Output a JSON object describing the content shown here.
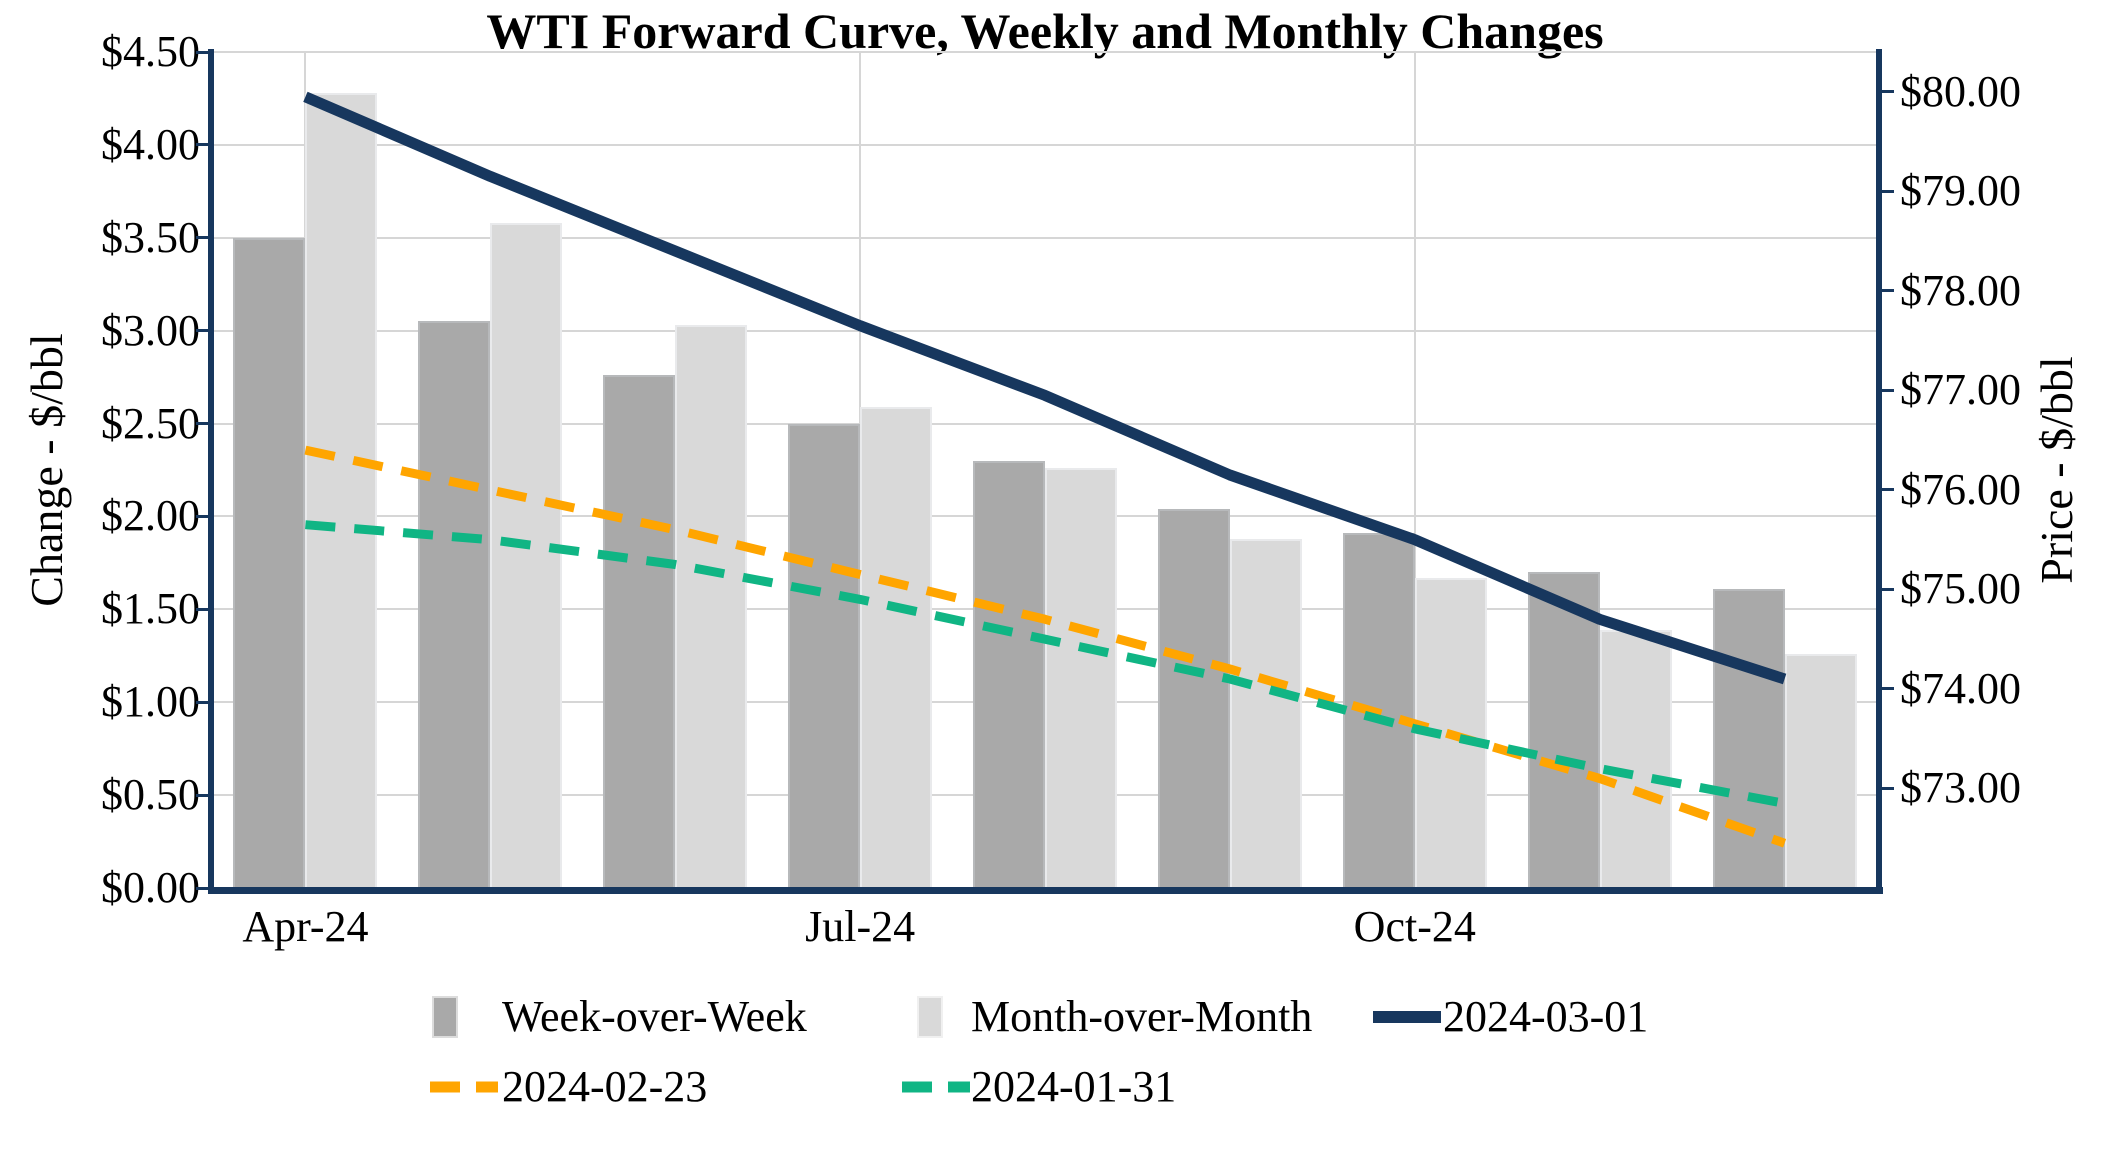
{
  "chart_data": {
    "type": "combo-bar-line",
    "title": "WTI Forward Curve, Weekly and Monthly Changes",
    "grid": true,
    "categories_count": 9,
    "x_ticks": [
      {
        "index": 0,
        "label": "Apr-24"
      },
      {
        "index": 3,
        "label": "Jul-24"
      },
      {
        "index": 6,
        "label": "Oct-24"
      }
    ],
    "left_axis": {
      "label": "Change - $/bbl",
      "min": 0.0,
      "max": 4.5,
      "ticks": [
        {
          "value": 0.0,
          "label": "$0.00"
        },
        {
          "value": 0.5,
          "label": "$0.50"
        },
        {
          "value": 1.0,
          "label": "$1.00"
        },
        {
          "value": 1.5,
          "label": "$1.50"
        },
        {
          "value": 2.0,
          "label": "$2.00"
        },
        {
          "value": 2.5,
          "label": "$2.50"
        },
        {
          "value": 3.0,
          "label": "$3.00"
        },
        {
          "value": 3.5,
          "label": "$3.50"
        },
        {
          "value": 4.0,
          "label": "$4.00"
        },
        {
          "value": 4.5,
          "label": "$4.50"
        }
      ]
    },
    "right_axis": {
      "label": "Price - $/bbl",
      "min": 72.0,
      "max": 80.4,
      "ticks": [
        {
          "value": 73.0,
          "label": "$73.00"
        },
        {
          "value": 74.0,
          "label": "$74.00"
        },
        {
          "value": 75.0,
          "label": "$75.00"
        },
        {
          "value": 76.0,
          "label": "$76.00"
        },
        {
          "value": 77.0,
          "label": "$77.00"
        },
        {
          "value": 78.0,
          "label": "$78.00"
        },
        {
          "value": 79.0,
          "label": "$79.00"
        },
        {
          "value": 80.0,
          "label": "$80.00"
        }
      ]
    },
    "bar_series": [
      {
        "name": "Week-over-Week",
        "axis": "left",
        "color": "#A9A9A9",
        "edge_color": "#B7B9BB",
        "values": [
          3.5,
          3.05,
          2.76,
          2.5,
          2.3,
          2.04,
          1.91,
          1.7,
          1.61
        ]
      },
      {
        "name": "Month-over-Month",
        "axis": "left",
        "color": "#D9D9D9",
        "edge_color": "#E9EAEC",
        "values": [
          4.28,
          3.58,
          3.03,
          2.59,
          2.26,
          1.88,
          1.67,
          1.39,
          1.26
        ]
      }
    ],
    "line_series": [
      {
        "name": "2024-03-01",
        "axis": "right",
        "color": "#17375E",
        "style": "solid",
        "values": [
          79.95,
          79.15,
          78.4,
          77.65,
          76.95,
          76.15,
          75.5,
          74.7,
          74.1
        ]
      },
      {
        "name": "2024-02-23",
        "axis": "right",
        "color": "#FFA500",
        "style": "dashed",
        "values": [
          76.4,
          76.0,
          75.6,
          75.15,
          74.7,
          74.2,
          73.65,
          73.1,
          72.45
        ]
      },
      {
        "name": "2024-01-31",
        "axis": "right",
        "color": "#10B584",
        "style": "dashed",
        "values": [
          75.65,
          75.5,
          75.25,
          74.9,
          74.5,
          74.1,
          73.6,
          73.2,
          72.85
        ]
      }
    ],
    "legend": {
      "rows": [
        [
          {
            "type": "bar",
            "color": "#A9A9A9",
            "label": "Week-over-Week"
          },
          {
            "type": "bar",
            "color": "#D9D9D9",
            "label": "Month-over-Month"
          },
          {
            "type": "line",
            "style": "solid",
            "color": "#17375E",
            "label": "2024-03-01"
          }
        ],
        [
          {
            "type": "line",
            "style": "dashed",
            "color": "#FFA500",
            "label": "2024-02-23"
          },
          {
            "type": "line",
            "style": "dashed",
            "color": "#10B584",
            "label": "2024-01-31"
          }
        ]
      ]
    },
    "colors": {
      "spine": "#17375E",
      "gridline": "#D6D6D6",
      "text": "#000000",
      "background": "#FFFFFF"
    }
  }
}
